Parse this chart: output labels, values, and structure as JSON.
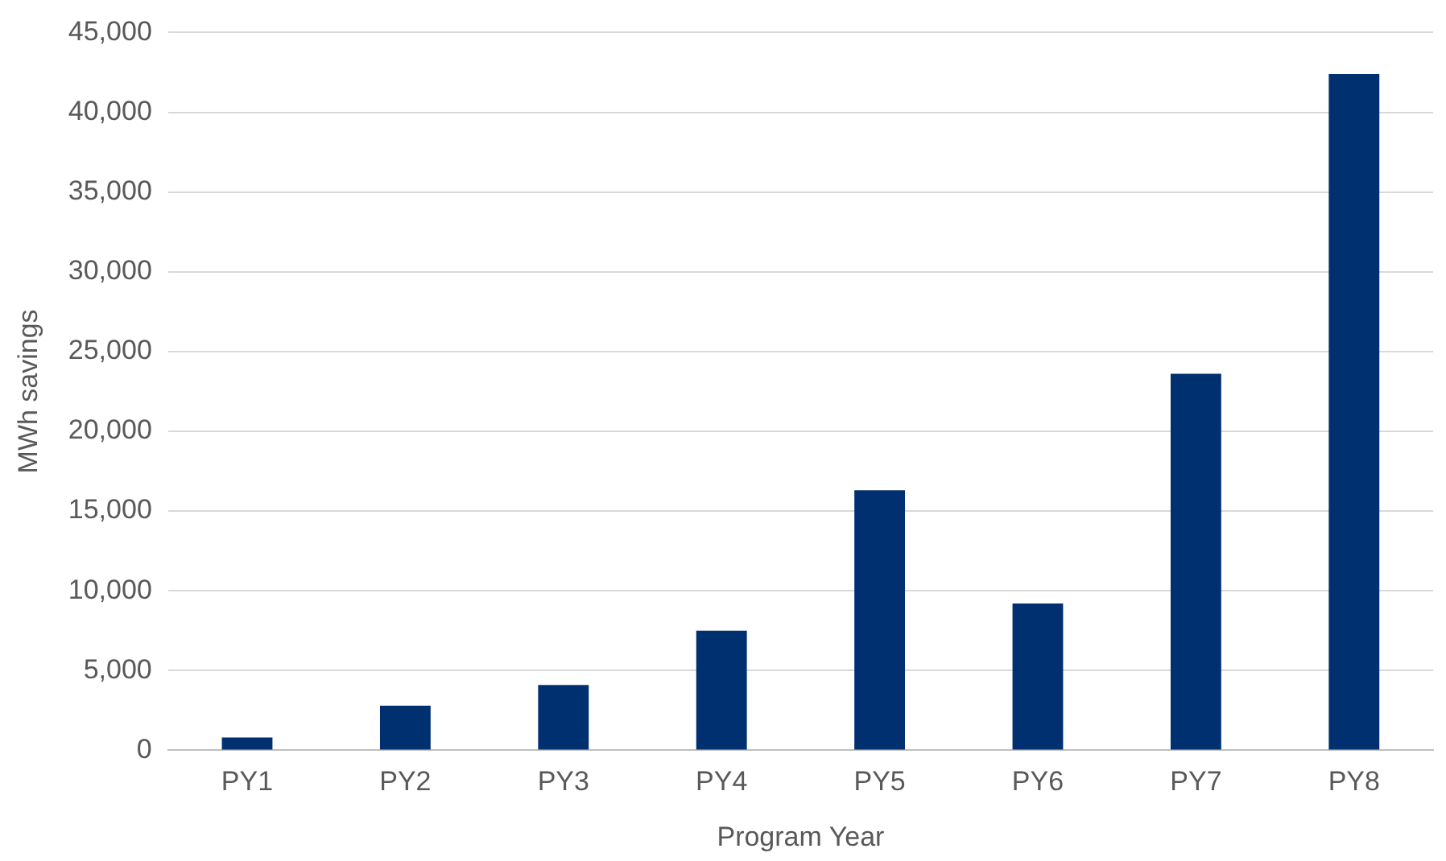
{
  "chart_data": {
    "type": "bar",
    "xlabel": "Program Year",
    "ylabel": "MWh savings",
    "categories": [
      "PY1",
      "PY2",
      "PY3",
      "PY4",
      "PY5",
      "PY6",
      "PY7",
      "PY8"
    ],
    "values": [
      800,
      2800,
      4100,
      7500,
      16300,
      9200,
      23600,
      42400
    ],
    "color": "#003070",
    "ylim": [
      0,
      45000
    ],
    "yticks": [
      0,
      {
        "value": 5000,
        "label": "5,000"
      },
      {
        "value": 10000,
        "label": "10,000"
      },
      {
        "value": 15000,
        "label": "15,000"
      },
      {
        "value": 20000,
        "label": "20,000"
      },
      {
        "value": 25000,
        "label": "25,000"
      },
      {
        "value": 30000,
        "label": "30,000"
      },
      {
        "value": 35000,
        "label": "35,000"
      },
      {
        "value": 40000,
        "label": "40,000"
      },
      {
        "value": 45000,
        "label": "45,000"
      }
    ],
    "grid": "y",
    "legend": false
  }
}
